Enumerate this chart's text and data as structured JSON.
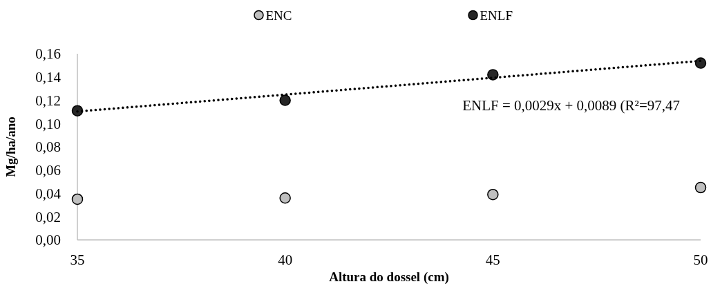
{
  "chart_data": {
    "type": "scatter",
    "xlabel": "Altura do dossel (cm)",
    "ylabel": "Mg/ha/ano",
    "x": [
      35,
      40,
      45,
      50
    ],
    "series": [
      {
        "name": "ENC",
        "color": "#bfbfbf",
        "values": [
          0.035,
          0.036,
          0.039,
          0.045
        ]
      },
      {
        "name": "ENLF",
        "color": "#262626",
        "values": [
          0.111,
          0.12,
          0.142,
          0.152
        ]
      },
      {
        "type": "line",
        "color": "#000000",
        "x": [
          35,
          50
        ],
        "values": [
          0.1104,
          0.1539
        ],
        "marker": "none",
        "line_style": "dotted"
      }
    ],
    "xlim": [
      35,
      50
    ],
    "xticks": [
      35,
      40,
      45,
      50
    ],
    "ylim": [
      0,
      0.16
    ],
    "yticks": [
      {
        "value": 0,
        "label": "0,00"
      },
      {
        "value": 0.02,
        "label": "0,02"
      },
      {
        "value": 0.04,
        "label": "0,04"
      },
      {
        "value": 0.06,
        "label": "0,06"
      },
      {
        "value": 0.08,
        "label": "0,08"
      },
      {
        "value": 0.1,
        "label": "0,10"
      },
      {
        "value": 0.12,
        "label": "0,12"
      },
      {
        "value": 0.14,
        "label": "0,14"
      },
      {
        "value": 0.16,
        "label": "0,16"
      }
    ],
    "annotations": [
      "ENLF = 0,0029x + 0,0089 (R²=97,47"
    ],
    "legend": "top",
    "marker": "circle",
    "grid": false
  }
}
